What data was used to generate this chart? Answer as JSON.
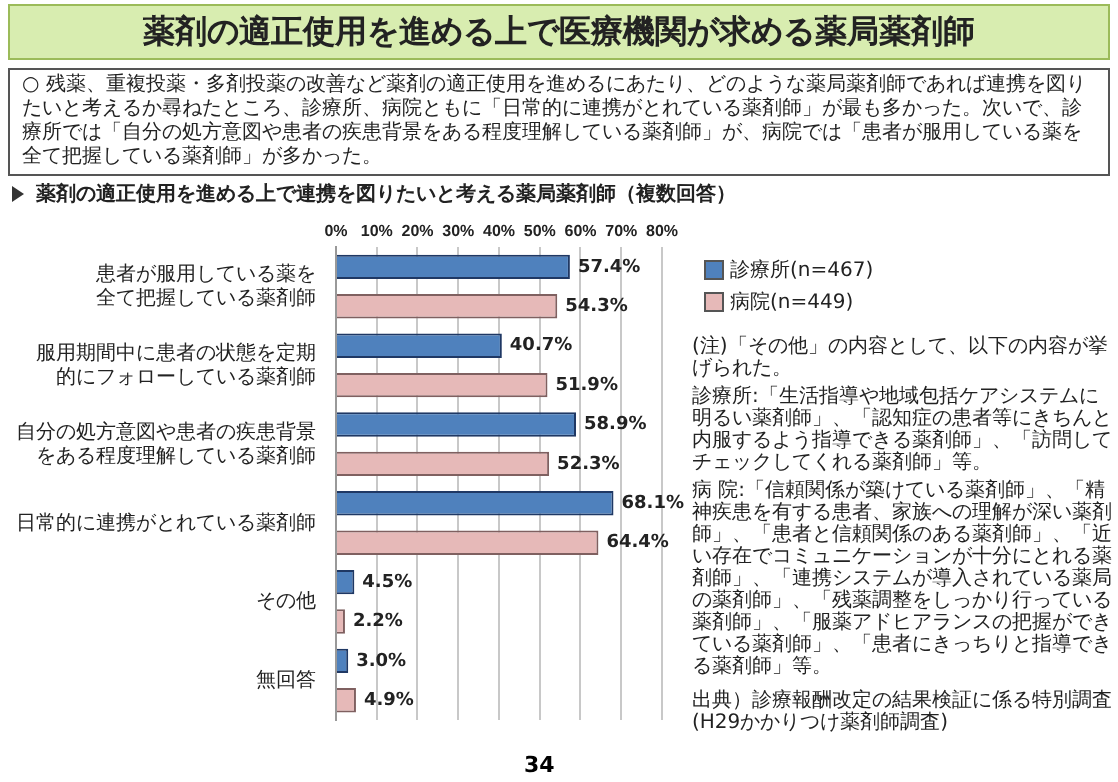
{
  "chart_data": {
    "type": "bar",
    "orientation": "horizontal",
    "title": "薬剤の適正使用を進める上で医療機関が求める薬局薬剤師",
    "subtitle": "薬剤の適正使用を進める上で連携を図りたいと考える薬局薬剤師（複数回答）",
    "categories": [
      "患者が服用している薬を全て把握している薬剤師",
      "服用期間中に患者の状態を定期的にフォローしている薬剤師",
      "自分の処方意図や患者の疾患背景をある程度理解している薬剤師",
      "日常的に連携がとれている薬剤師",
      "その他",
      "無回答"
    ],
    "series": [
      {
        "name": "診療所(n=467)",
        "color": "#4f81bd",
        "values": [
          57.4,
          40.7,
          58.9,
          68.1,
          4.5,
          3.0
        ],
        "value_labels": [
          "57.4%",
          "40.7%",
          "58.9%",
          "68.1%",
          "4.5%",
          "3.0%"
        ]
      },
      {
        "name": "病院(n=449)",
        "color": "#e6b9b8",
        "values": [
          54.3,
          51.9,
          52.3,
          64.4,
          2.2,
          4.9
        ],
        "value_labels": [
          "54.3%",
          "51.9%",
          "52.3%",
          "64.4%",
          "2.2%",
          "4.9%"
        ]
      }
    ],
    "xlim": [
      0,
      80
    ],
    "xticks": [
      {
        "value": 0,
        "label": "0%"
      },
      {
        "value": 10,
        "label": "10%"
      },
      {
        "value": 20,
        "label": "20%"
      },
      {
        "value": 30,
        "label": "30%"
      },
      {
        "value": 40,
        "label": "40%"
      },
      {
        "value": 50,
        "label": "50%"
      },
      {
        "value": 60,
        "label": "60%"
      },
      {
        "value": 70,
        "label": "70%"
      },
      {
        "value": 80,
        "label": "80%"
      }
    ],
    "grid": "x",
    "legend": "right",
    "annotations": [
      "○ 残薬、重複投薬・多剤投薬の改善など薬剤の適正使用を進めるにあたり、どのような薬局薬剤師であれば連携を図りたいと考えるか尋ねたところ、診療所、病院ともに「日常的に連携がとれている薬剤師」が最も多かった。次いで、診療所では「自分の処方意図や患者の疾患背景をある程度理解している薬剤師」が、病院では「患者が服用している薬を全て把握している薬剤師」が多かった。",
      "(注)「その他」の内容として、以下の内容が挙げられた。",
      "診療所:「生活指導や地域包括ケアシステムに明るい薬剤師」、「認知症の患者等にきちんと内服するよう指導できる薬剤師」、「訪問してチェックしてくれる薬剤師」等。",
      "病 院:「信頼関係が築けている薬剤師」、「精神疾患を有する患者、家族への理解が深い薬剤師」、「患者と信頼関係のある薬剤師」、「近い存在でコミュニケーションが十分にとれる薬剤師」、「連携システムが導入されている薬局の薬剤師」、「残薬調整をしっかり行っている薬剤師」、「服薬アドヒアランスの把握ができている薬剤師」、「患者にきっちりと指導できる薬剤師」等。",
      "出典）診療報酬改定の結果検証に係る特別調査(H29かかりつけ薬剤師調査)",
      "34"
    ]
  }
}
